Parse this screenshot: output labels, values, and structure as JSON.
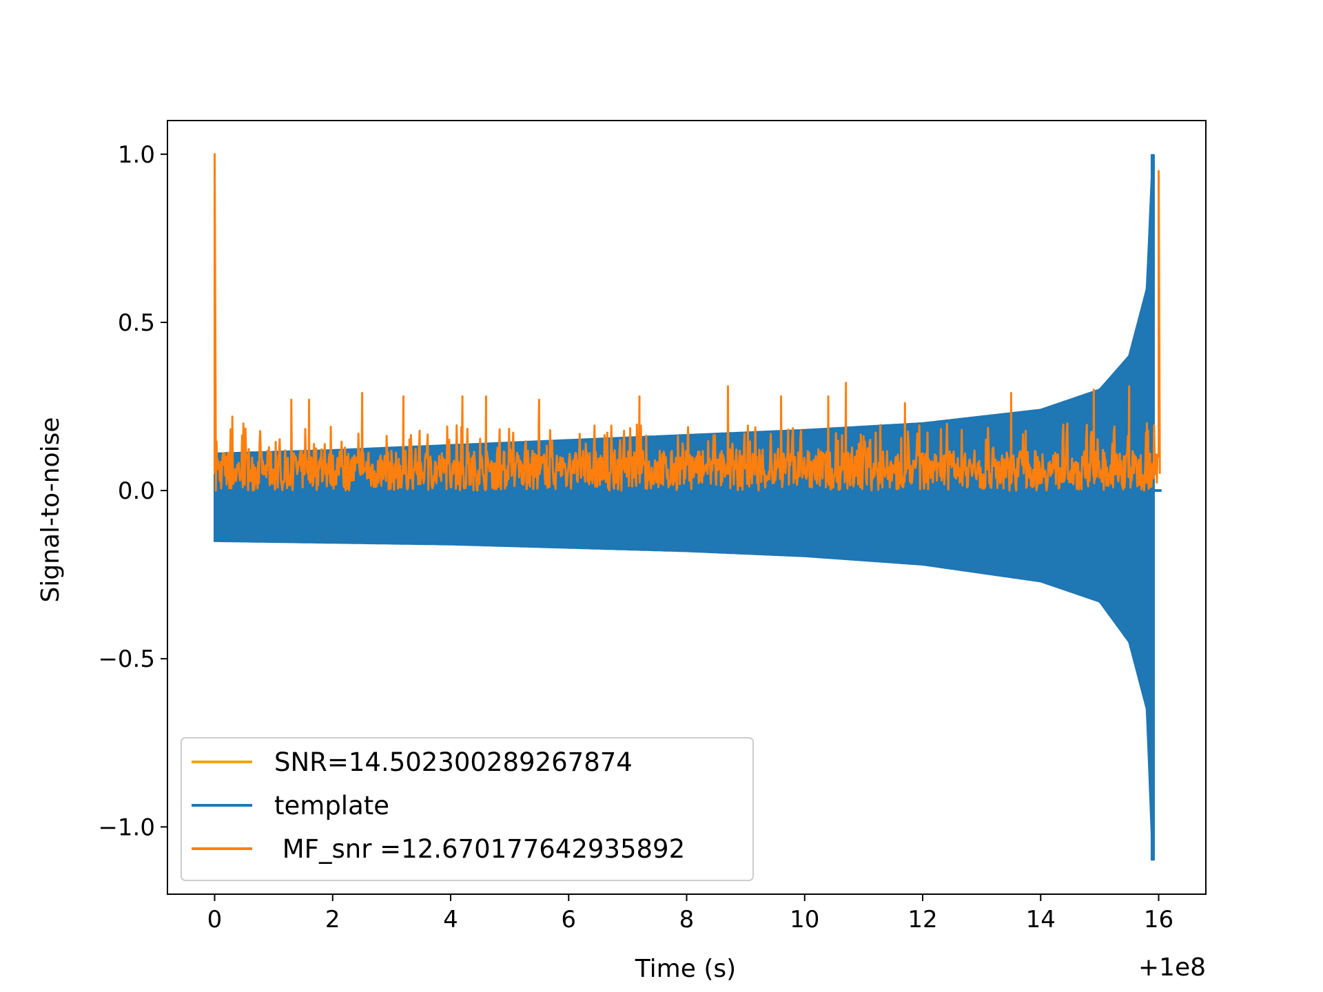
{
  "chart_data": {
    "type": "line",
    "title": "",
    "xlabel": "Time (s)",
    "ylabel": "Signal-to-noise",
    "x_offset_label": "+1e8",
    "xlim": [
      -0.8,
      16.8
    ],
    "ylim": [
      -1.2,
      1.1
    ],
    "x_ticks": [
      0,
      2,
      4,
      6,
      8,
      10,
      12,
      14,
      16
    ],
    "x_tick_labels": [
      "0",
      "2",
      "4",
      "6",
      "8",
      "10",
      "12",
      "14",
      "16"
    ],
    "y_ticks": [
      1.0,
      0.5,
      0.0,
      -0.5,
      -1.0
    ],
    "y_tick_labels": [
      "1.0",
      "0.5",
      "0.0",
      "−0.5",
      "−1.0"
    ],
    "grid": false,
    "legend_position": "lower-left",
    "legend": [
      {
        "label": "SNR=14.502300289267874",
        "color": "#f5a300"
      },
      {
        "label": "template",
        "color": "#1f77b4"
      },
      {
        "label": " MF_snr =12.670177642935892",
        "color": "#ff7f0e"
      }
    ],
    "series": [
      {
        "name": "template",
        "color": "#1f77b4",
        "kind": "envelope-chirp",
        "x": [
          0,
          2,
          4,
          6,
          8,
          10,
          12,
          14,
          15,
          15.5,
          15.8,
          15.9
        ],
        "upper": [
          0.11,
          0.12,
          0.135,
          0.15,
          0.165,
          0.18,
          0.2,
          0.24,
          0.3,
          0.4,
          0.6,
          1.0
        ],
        "lower": [
          -0.15,
          -0.155,
          -0.16,
          -0.17,
          -0.18,
          -0.195,
          -0.22,
          -0.27,
          -0.33,
          -0.45,
          -0.65,
          -1.1
        ]
      },
      {
        "name": " MF_snr =12.670177642935892",
        "color": "#ff7f0e",
        "kind": "noise-trace",
        "x": [
          0,
          0.02,
          0.05,
          0.3,
          1.3,
          1.6,
          2.5,
          3.2,
          4.2,
          4.6,
          5.5,
          7.2,
          8.7,
          9.6,
          10.4,
          10.7,
          11.7,
          13.5,
          14.9,
          15.5,
          15.8,
          16.0,
          16.02
        ],
        "y": [
          1.0,
          0.1,
          0.08,
          0.22,
          0.27,
          0.27,
          0.29,
          0.28,
          0.28,
          0.28,
          0.27,
          0.28,
          0.31,
          0.28,
          0.28,
          0.32,
          0.26,
          0.29,
          0.3,
          0.31,
          0.2,
          0.95,
          0.05
        ],
        "baseline": [
          0.0,
          0.12
        ]
      },
      {
        "name": "SNR=14.502300289267874",
        "color": "#f5a300",
        "kind": "hidden-under",
        "x": [],
        "y": []
      }
    ]
  }
}
